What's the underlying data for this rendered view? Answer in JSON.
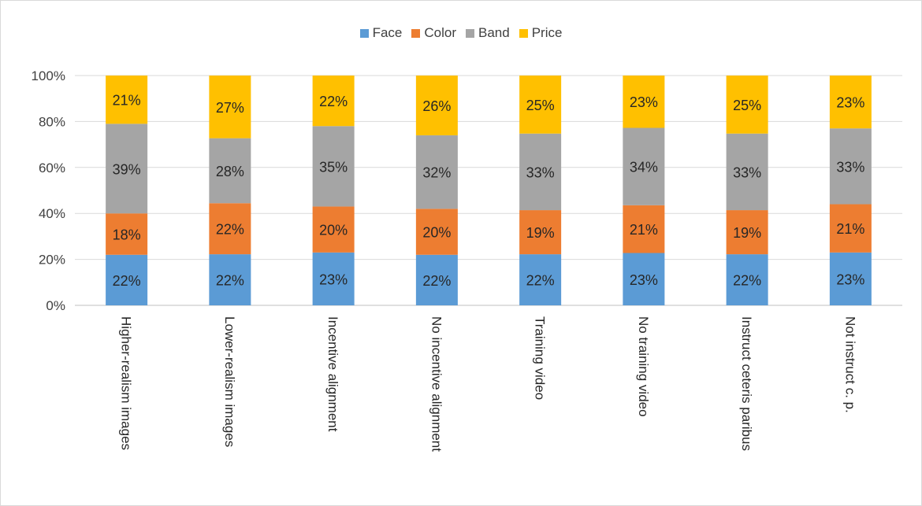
{
  "chart_data": {
    "type": "bar",
    "stacked": "percent",
    "categories": [
      "Higher-realism images",
      "Lower-realism images",
      "Incentive alignment",
      "No incentive alignment",
      "Training video",
      "No training video",
      "Instruct ceteris paribus",
      "Not instruct c. p."
    ],
    "series": [
      {
        "name": "Face",
        "color": "#5b9bd5",
        "values": [
          22,
          22,
          23,
          22,
          22,
          23,
          22,
          23
        ],
        "labels": [
          "22%",
          "22%",
          "23%",
          "22%",
          "22%",
          "23%",
          "22%",
          "23%"
        ]
      },
      {
        "name": "Color",
        "color": "#ed7d31",
        "values": [
          18,
          22,
          20,
          20,
          19,
          21,
          19,
          21
        ],
        "labels": [
          "18%",
          "22%",
          "20%",
          "20%",
          "19%",
          "21%",
          "19%",
          "21%"
        ]
      },
      {
        "name": "Band",
        "color": "#a5a5a5",
        "values": [
          39,
          28,
          35,
          32,
          33,
          34,
          33,
          33
        ],
        "labels": [
          "39%",
          "28%",
          "35%",
          "32%",
          "33%",
          "34%",
          "33%",
          "33%"
        ]
      },
      {
        "name": "Price",
        "color": "#ffc000",
        "values": [
          21,
          27,
          22,
          26,
          25,
          23,
          25,
          23
        ],
        "labels": [
          "21%",
          "27%",
          "22%",
          "26%",
          "25%",
          "23%",
          "25%",
          "23%"
        ]
      }
    ],
    "ylim": [
      0,
      100
    ],
    "yticks": [
      "0%",
      "20%",
      "40%",
      "60%",
      "80%",
      "100%"
    ],
    "grid": true,
    "legend_position": "top",
    "xtick_rotation": "vertical"
  }
}
